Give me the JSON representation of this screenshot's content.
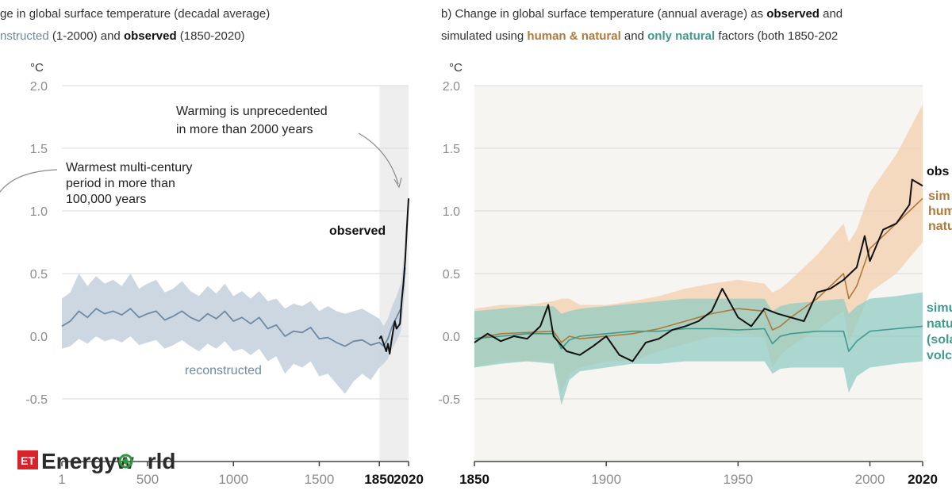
{
  "figure": {
    "panel_a": {
      "title_line1": "ge in global surface temperature (decadal average)",
      "title_line2_part1": "nstructed",
      "title_line2_part2": " (1-2000) and ",
      "title_line2_bold": "observed",
      "title_line2_part3": " (1850-2020)",
      "unit": "°C",
      "annotation_unprecedented": [
        "Warming is unprecedented",
        "in more than 2000 years"
      ],
      "annotation_warmest": [
        "Warmest multi-century",
        "period in more than",
        "100,000 years"
      ],
      "label_observed": "observed",
      "label_reconstructed": "reconstructed"
    },
    "panel_b": {
      "title_line1_part1": "b) Change in global surface temperature (annual average) as ",
      "title_line1_bold": "observed",
      "title_line1_part2": " and",
      "title_line2_part1": "simulated using ",
      "title_line2_human": "human & natural",
      "title_line2_part2": " and ",
      "title_line2_natural": "only natural",
      "title_line2_part3": " factors (both 1850-202",
      "unit": "°C",
      "label_observed": "obs",
      "label_sim_human": [
        "sim",
        "hum",
        "natu"
      ],
      "label_sim_natural": [
        "simu",
        "natu",
        "(sola",
        "volc"
      ]
    },
    "watermark": {
      "badge": "ET",
      "text_part1": "Energyw",
      "text_part2": "rld"
    }
  },
  "colors": {
    "observed": "#111111",
    "reconstructed": "#6e8aa3",
    "reconstructed_band": "#c6d3df",
    "human_natural": "#b07a3a",
    "human_natural_band": "#f3d3b6",
    "natural": "#3f9a90",
    "natural_band": "#8ccac2",
    "shade": "#eeeeee",
    "grid": "#d9d9d9",
    "axis_text": "#8c8c8c",
    "et_red": "#d8232a"
  },
  "chart_data": [
    {
      "type": "line",
      "id": "panel_a",
      "ylabel": "°C",
      "xlim": [
        1,
        2020
      ],
      "ylim": [
        -0.5,
        2.0
      ],
      "y_ticks": [
        2.0,
        1.5,
        1.0,
        0.5,
        0.0,
        -0.5
      ],
      "y_tick_labels": [
        "2.0",
        "1.5",
        "1.0",
        "0.5",
        "0.0",
        "-0.5"
      ],
      "x_ticks": [
        1,
        500,
        1000,
        1500,
        1850,
        2020
      ],
      "x_tick_labels": [
        "1",
        "500",
        "1000",
        "1500",
        "1850",
        "2020"
      ],
      "x_tick_bold": [
        false,
        false,
        false,
        false,
        true,
        true
      ],
      "shaded_region": [
        1850,
        2020
      ],
      "grid": true,
      "series": [
        {
          "name": "reconstructed",
          "x": [
            1,
            50,
            100,
            150,
            200,
            250,
            300,
            350,
            400,
            450,
            500,
            550,
            600,
            650,
            700,
            750,
            800,
            850,
            900,
            950,
            1000,
            1050,
            1100,
            1150,
            1200,
            1250,
            1300,
            1350,
            1400,
            1450,
            1500,
            1550,
            1600,
            1650,
            1700,
            1750,
            1800,
            1850,
            1875,
            1900,
            1925,
            1950,
            1975,
            2000
          ],
          "values": [
            0.08,
            0.12,
            0.2,
            0.15,
            0.22,
            0.18,
            0.2,
            0.17,
            0.22,
            0.15,
            0.18,
            0.2,
            0.13,
            0.16,
            0.2,
            0.15,
            0.12,
            0.18,
            0.14,
            0.2,
            0.12,
            0.15,
            0.1,
            0.15,
            0.06,
            0.09,
            0.0,
            0.04,
            0.03,
            0.07,
            -0.02,
            -0.01,
            -0.05,
            -0.08,
            -0.04,
            -0.03,
            -0.07,
            -0.05,
            -0.08,
            -0.02,
            0.08,
            0.15,
            0.22,
            0.55
          ],
          "lower": [
            -0.1,
            -0.08,
            -0.02,
            -0.06,
            0.0,
            -0.04,
            -0.02,
            -0.05,
            0.0,
            -0.07,
            -0.05,
            -0.03,
            -0.1,
            -0.07,
            -0.03,
            -0.08,
            -0.12,
            -0.06,
            -0.1,
            -0.04,
            -0.12,
            -0.1,
            -0.15,
            -0.1,
            -0.2,
            -0.16,
            -0.3,
            -0.22,
            -0.25,
            -0.2,
            -0.32,
            -0.3,
            -0.38,
            -0.46,
            -0.36,
            -0.3,
            -0.35,
            -0.25,
            -0.22,
            -0.18,
            -0.1,
            -0.04,
            0.04,
            0.38
          ],
          "upper": [
            0.3,
            0.35,
            0.5,
            0.4,
            0.48,
            0.42,
            0.45,
            0.4,
            0.5,
            0.38,
            0.42,
            0.45,
            0.35,
            0.38,
            0.44,
            0.36,
            0.32,
            0.4,
            0.34,
            0.42,
            0.32,
            0.36,
            0.3,
            0.36,
            0.28,
            0.3,
            0.22,
            0.26,
            0.24,
            0.28,
            0.2,
            0.24,
            0.2,
            0.18,
            0.2,
            0.22,
            0.18,
            0.14,
            0.08,
            0.14,
            0.24,
            0.32,
            0.42,
            0.72
          ]
        },
        {
          "name": "observed",
          "x": [
            1850,
            1860,
            1870,
            1880,
            1890,
            1900,
            1910,
            1920,
            1930,
            1940,
            1950,
            1960,
            1970,
            1980,
            1990,
            2000,
            2010,
            2020
          ],
          "values": [
            -0.02,
            0.0,
            -0.04,
            -0.08,
            -0.12,
            -0.06,
            -0.14,
            -0.04,
            0.04,
            0.12,
            0.06,
            0.08,
            0.1,
            0.28,
            0.42,
            0.6,
            0.86,
            1.1
          ]
        }
      ]
    },
    {
      "type": "line",
      "id": "panel_b",
      "ylabel": "°C",
      "xlim": [
        1850,
        2020
      ],
      "ylim": [
        -0.5,
        2.0
      ],
      "y_ticks": [
        2.0,
        1.5,
        1.0,
        0.5,
        0.0,
        -0.5
      ],
      "y_tick_labels": [
        "2.0",
        "1.5",
        "1.0",
        "0.5",
        "0.0",
        "-0.5"
      ],
      "x_ticks": [
        1850,
        1900,
        1950,
        2000,
        2020
      ],
      "x_tick_labels": [
        "1850",
        "1900",
        "1950",
        "2000",
        "2020"
      ],
      "x_tick_bold": [
        true,
        false,
        false,
        false,
        true
      ],
      "grid": true,
      "series": [
        {
          "name": "simulated human & natural",
          "x": [
            1850,
            1860,
            1870,
            1880,
            1883,
            1886,
            1890,
            1900,
            1910,
            1920,
            1930,
            1940,
            1950,
            1960,
            1963,
            1966,
            1970,
            1980,
            1990,
            1992,
            1995,
            2000,
            2010,
            2020
          ],
          "values": [
            -0.02,
            0.02,
            0.03,
            0.04,
            -0.05,
            0.0,
            -0.02,
            0.0,
            0.02,
            0.06,
            0.12,
            0.18,
            0.22,
            0.2,
            0.05,
            0.08,
            0.15,
            0.3,
            0.5,
            0.3,
            0.4,
            0.7,
            0.9,
            1.1
          ],
          "lower": [
            -0.25,
            -0.2,
            -0.2,
            -0.2,
            -0.45,
            -0.3,
            -0.25,
            -0.2,
            -0.2,
            -0.12,
            -0.06,
            0.0,
            0.02,
            0.0,
            -0.25,
            -0.15,
            -0.08,
            0.05,
            0.2,
            -0.05,
            0.1,
            0.35,
            0.5,
            0.75
          ],
          "upper": [
            0.22,
            0.25,
            0.25,
            0.28,
            0.3,
            0.3,
            0.25,
            0.25,
            0.28,
            0.32,
            0.38,
            0.42,
            0.45,
            0.42,
            0.35,
            0.38,
            0.45,
            0.65,
            0.9,
            0.75,
            0.85,
            1.15,
            1.45,
            1.85
          ]
        },
        {
          "name": "simulated only natural",
          "x": [
            1850,
            1860,
            1870,
            1880,
            1883,
            1886,
            1890,
            1900,
            1910,
            1920,
            1930,
            1940,
            1950,
            1960,
            1963,
            1966,
            1970,
            1980,
            1990,
            1992,
            1995,
            2000,
            2010,
            2020
          ],
          "values": [
            -0.02,
            0.0,
            0.02,
            0.02,
            -0.1,
            -0.03,
            0.0,
            0.02,
            0.04,
            0.04,
            0.06,
            0.06,
            0.05,
            0.06,
            -0.06,
            0.0,
            0.02,
            0.04,
            0.04,
            -0.12,
            -0.04,
            0.04,
            0.06,
            0.08
          ],
          "lower": [
            -0.25,
            -0.22,
            -0.2,
            -0.22,
            -0.55,
            -0.35,
            -0.28,
            -0.25,
            -0.22,
            -0.22,
            -0.2,
            -0.2,
            -0.2,
            -0.2,
            -0.3,
            -0.26,
            -0.25,
            -0.25,
            -0.25,
            -0.45,
            -0.32,
            -0.25,
            -0.22,
            -0.2
          ],
          "upper": [
            0.2,
            0.22,
            0.24,
            0.24,
            0.18,
            0.2,
            0.22,
            0.24,
            0.26,
            0.28,
            0.3,
            0.3,
            0.3,
            0.3,
            0.2,
            0.24,
            0.26,
            0.28,
            0.3,
            0.18,
            0.24,
            0.3,
            0.32,
            0.35
          ]
        },
        {
          "name": "observed",
          "x": [
            1850,
            1855,
            1860,
            1865,
            1870,
            1875,
            1878,
            1880,
            1885,
            1890,
            1895,
            1900,
            1905,
            1910,
            1915,
            1920,
            1925,
            1930,
            1935,
            1940,
            1944,
            1950,
            1955,
            1960,
            1965,
            1970,
            1975,
            1980,
            1985,
            1990,
            1995,
            1998,
            2000,
            2005,
            2010,
            2015,
            2016,
            2020
          ],
          "values": [
            -0.05,
            0.02,
            -0.04,
            0.0,
            -0.02,
            0.08,
            0.25,
            0.0,
            -0.12,
            -0.15,
            -0.08,
            0.0,
            -0.15,
            -0.2,
            -0.05,
            -0.02,
            0.05,
            0.08,
            0.12,
            0.2,
            0.38,
            0.15,
            0.08,
            0.22,
            0.18,
            0.15,
            0.12,
            0.35,
            0.38,
            0.45,
            0.55,
            0.8,
            0.6,
            0.85,
            0.9,
            1.05,
            1.25,
            1.2
          ]
        }
      ]
    }
  ]
}
